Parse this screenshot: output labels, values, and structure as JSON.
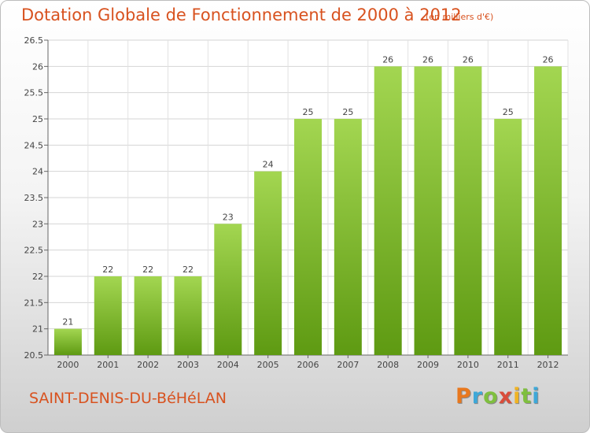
{
  "header": {
    "title": "Dotation Globale de Fonctionnement de 2000 à 2012",
    "subtitle": "(en milliers d'€)"
  },
  "footer": {
    "commune": "SAINT-DENIS-DU-BéHéLAN",
    "logo_text": "Proxiti",
    "logo_colors": [
      "#e8781e",
      "#3ea8d8",
      "#7fbf3f",
      "#d94c3a",
      "#f0b323",
      "#7fbf3f",
      "#3ea8d8"
    ]
  },
  "chart_data": {
    "type": "bar",
    "title": "Dotation Globale de Fonctionnement de 2000 à 2012",
    "subtitle": "(en milliers d'€)",
    "categories": [
      "2000",
      "2001",
      "2002",
      "2003",
      "2004",
      "2005",
      "2006",
      "2007",
      "2008",
      "2009",
      "2010",
      "2011",
      "2012"
    ],
    "values": [
      21,
      22,
      22,
      22,
      23,
      24,
      25,
      25,
      26,
      26,
      26,
      25,
      26
    ],
    "data_labels": [
      "21",
      "22",
      "22",
      "22",
      "23",
      "24",
      "25",
      "25",
      "26",
      "26",
      "26",
      "25",
      "26"
    ],
    "ylim": [
      20.5,
      26.5
    ],
    "yticks": [
      20.5,
      21,
      21.5,
      22,
      22.5,
      23,
      23.5,
      24,
      24.5,
      25,
      25.5,
      26,
      26.5
    ],
    "ytick_labels": [
      "20.5",
      "21",
      "21.5",
      "22",
      "22.5",
      "23",
      "23.5",
      "24",
      "24.5",
      "25",
      "25.5",
      "26",
      "26.5"
    ],
    "grid": true,
    "bar_color_top": "#a3d651",
    "bar_color_bottom": "#5e9a12"
  }
}
